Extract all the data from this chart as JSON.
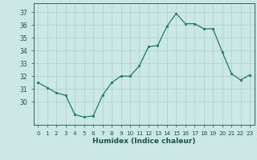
{
  "x": [
    0,
    1,
    2,
    3,
    4,
    5,
    6,
    7,
    8,
    9,
    10,
    11,
    12,
    13,
    14,
    15,
    16,
    17,
    18,
    19,
    20,
    21,
    22,
    23
  ],
  "y": [
    31.5,
    31.1,
    30.7,
    30.5,
    29.0,
    28.8,
    28.9,
    30.5,
    31.5,
    32.0,
    32.0,
    32.8,
    34.3,
    34.4,
    35.9,
    36.9,
    36.1,
    36.1,
    35.7,
    35.7,
    33.9,
    32.2,
    31.7,
    32.1
  ],
  "line_color": "#1a7a6e",
  "marker": "s",
  "marker_size": 2.0,
  "bg_color": "#cce8e4",
  "grid_color": "#aacfcc",
  "tick_color": "#1a5050",
  "xlabel": "Humidex (Indice chaleur)",
  "ylim": [
    28.2,
    37.7
  ],
  "yticks": [
    30,
    31,
    32,
    33,
    34,
    35,
    36,
    37
  ],
  "xlim": [
    -0.5,
    23.5
  ],
  "xticks": [
    0,
    1,
    2,
    3,
    4,
    5,
    6,
    7,
    8,
    9,
    10,
    11,
    12,
    13,
    14,
    15,
    16,
    17,
    18,
    19,
    20,
    21,
    22,
    23
  ]
}
